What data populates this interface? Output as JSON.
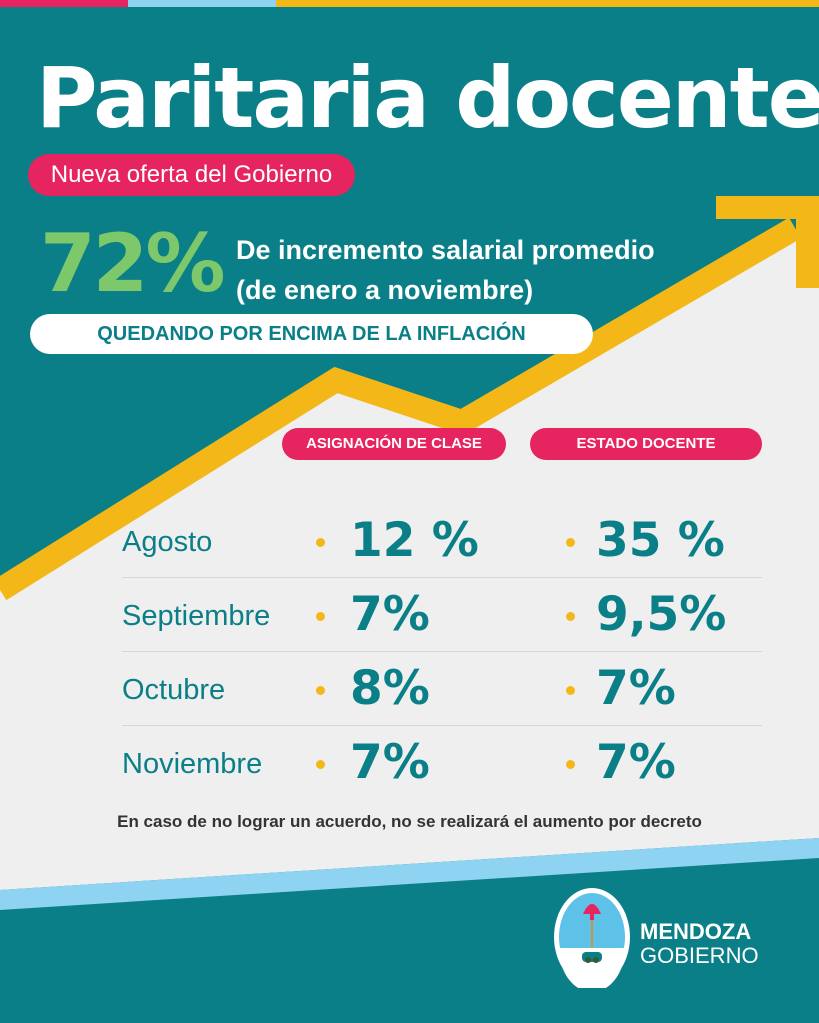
{
  "colors": {
    "teal": "#0b7f87",
    "pink": "#e6245f",
    "yellow": "#f4b718",
    "green": "#7cc86a",
    "light_blue": "#8fd3f2",
    "panel_gray": "#efefef"
  },
  "header": {
    "title": "Paritaria docente",
    "subtitle": "Nueva oferta del Gobierno"
  },
  "highlight": {
    "percent": "72%",
    "line1": "De incremento salarial promedio",
    "line2": "(de enero a noviembre)",
    "banner": "QUEDANDO POR ENCIMA DE LA INFLACIÓN"
  },
  "table": {
    "columns": [
      "ASIGNACIÓN DE CLASE",
      "ESTADO DOCENTE"
    ],
    "rows": [
      {
        "month": "Agosto",
        "asignacion": "12 %",
        "estado": "35 %"
      },
      {
        "month": "Septiembre",
        "asignacion": "7%",
        "estado": "9,5%"
      },
      {
        "month": "Octubre",
        "asignacion": "8%",
        "estado": "7%"
      },
      {
        "month": "Noviembre",
        "asignacion": "7%",
        "estado": "7%"
      }
    ]
  },
  "footnote": "En caso de no lograr un acuerdo, no se realizará el aumento por decreto",
  "logo": {
    "icon": "mendoza-coat-of-arms-icon",
    "line1": "MENDOZA",
    "line2": "GOBIERNO"
  }
}
